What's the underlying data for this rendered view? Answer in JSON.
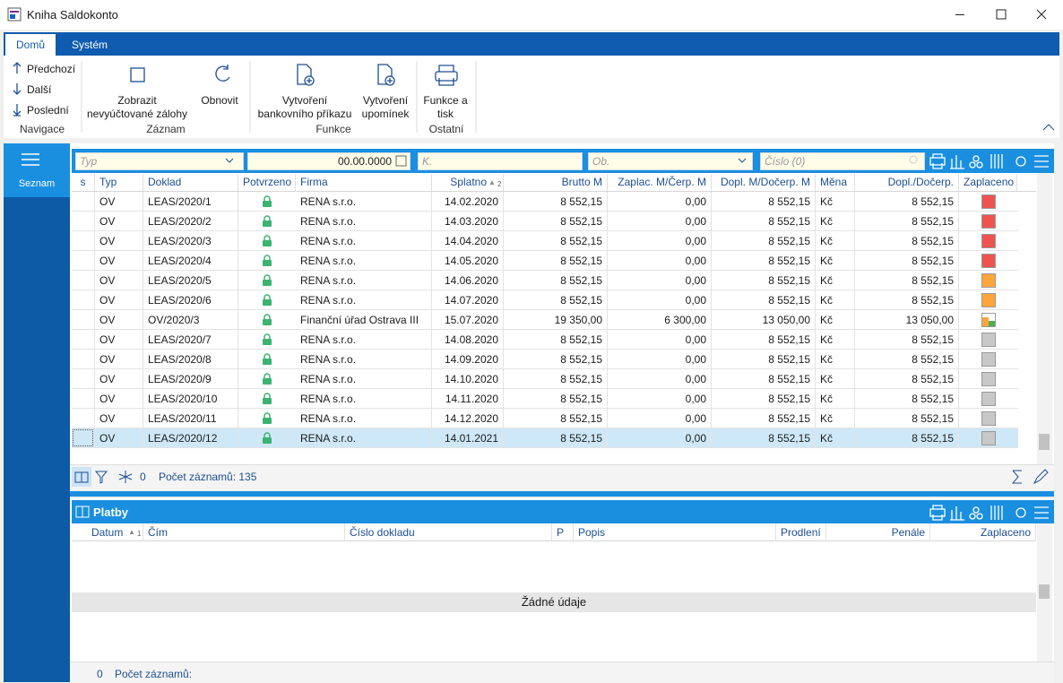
{
  "window": {
    "title": "Kniha Saldokonto"
  },
  "ribbon": {
    "tabs": [
      "Domů",
      "Systém"
    ],
    "groups": [
      {
        "label": "Navigace",
        "items": [
          {
            "lines": [
              "Předchozí"
            ]
          },
          {
            "lines": [
              "Další"
            ]
          },
          {
            "lines": [
              "Poslední"
            ]
          }
        ]
      },
      {
        "label": "Záznam",
        "items": [
          {
            "lines": [
              "Zobrazit",
              "nevyúčtované zálohy"
            ]
          },
          {
            "lines": [
              "Obnovit"
            ]
          }
        ]
      },
      {
        "label": "Funkce",
        "items": [
          {
            "lines": [
              "Vytvoření",
              "bankovního příkazu"
            ]
          },
          {
            "lines": [
              "Vytvoření",
              "upomínek"
            ]
          }
        ]
      },
      {
        "label": "Ostatní",
        "items": [
          {
            "lines": [
              "Funkce a",
              "tisk"
            ]
          }
        ]
      }
    ]
  },
  "sidebar": {
    "tab": "Seznam"
  },
  "filters": {
    "typ": "Typ",
    "date": "00.00.0000",
    "k": "K.",
    "ob": "Ob.",
    "cislo": "Číslo (0)"
  },
  "table": {
    "columns": [
      "s",
      "Typ",
      "Doklad",
      "Potvrzeno",
      "Firma",
      "Splatno",
      "Brutto M",
      "Zaplac. M/Čerp. M",
      "Dopl. M/Dočerp. M",
      "Měna",
      "Dopl./Dočerp.",
      "Zaplaceno"
    ],
    "sort_index": "2",
    "rows": [
      [
        "OV",
        "LEAS/2020/1",
        "RENA s.r.o.",
        "14.02.2020",
        "8 552,15",
        "0,00",
        "8 552,15",
        "Kč",
        "8 552,15"
      ],
      [
        "OV",
        "LEAS/2020/2",
        "RENA s.r.o.",
        "14.03.2020",
        "8 552,15",
        "0,00",
        "8 552,15",
        "Kč",
        "8 552,15"
      ],
      [
        "OV",
        "LEAS/2020/3",
        "RENA s.r.o.",
        "14.04.2020",
        "8 552,15",
        "0,00",
        "8 552,15",
        "Kč",
        "8 552,15"
      ],
      [
        "OV",
        "LEAS/2020/4",
        "RENA s.r.o.",
        "14.05.2020",
        "8 552,15",
        "0,00",
        "8 552,15",
        "Kč",
        "8 552,15"
      ],
      [
        "OV",
        "LEAS/2020/5",
        "RENA s.r.o.",
        "14.06.2020",
        "8 552,15",
        "0,00",
        "8 552,15",
        "Kč",
        "8 552,15"
      ],
      [
        "OV",
        "LEAS/2020/6",
        "RENA s.r.o.",
        "14.07.2020",
        "8 552,15",
        "0,00",
        "8 552,15",
        "Kč",
        "8 552,15"
      ],
      [
        "OV",
        "OV/2020/3",
        "Finanční úřad Ostrava III",
        "15.07.2020",
        "19 350,00",
        "6 300,00",
        "13 050,00",
        "Kč",
        "13 050,00"
      ],
      [
        "OV",
        "LEAS/2020/7",
        "RENA s.r.o.",
        "14.08.2020",
        "8 552,15",
        "0,00",
        "8 552,15",
        "Kč",
        "8 552,15"
      ],
      [
        "OV",
        "LEAS/2020/8",
        "RENA s.r.o.",
        "14.09.2020",
        "8 552,15",
        "0,00",
        "8 552,15",
        "Kč",
        "8 552,15"
      ],
      [
        "OV",
        "LEAS/2020/9",
        "RENA s.r.o.",
        "14.10.2020",
        "8 552,15",
        "0,00",
        "8 552,15",
        "Kč",
        "8 552,15"
      ],
      [
        "OV",
        "LEAS/2020/10",
        "RENA s.r.o.",
        "14.11.2020",
        "8 552,15",
        "0,00",
        "8 552,15",
        "Kč",
        "8 552,15"
      ],
      [
        "OV",
        "LEAS/2020/11",
        "RENA s.r.o.",
        "14.12.2020",
        "8 552,15",
        "0,00",
        "8 552,15",
        "Kč",
        "8 552,15"
      ],
      [
        "OV",
        "LEAS/2020/12",
        "RENA s.r.o.",
        "14.01.2021",
        "8 552,15",
        "0,00",
        "8 552,15",
        "Kč",
        "8 552,15"
      ]
    ],
    "paid_colors": [
      [
        "#ef5350"
      ],
      [
        "#ef5350"
      ],
      [
        "#ef5350"
      ],
      [
        "#ef5350"
      ],
      [
        "#ffa53a"
      ],
      [
        "#ffa53a"
      ],
      [
        "#ffa53a",
        "#4caf50"
      ],
      [
        "#c8c8c8"
      ],
      [
        "#c8c8c8"
      ],
      [
        "#c8c8c8"
      ],
      [
        "#c8c8c8"
      ],
      [
        "#c8c8c8"
      ],
      [
        "#c8c8c8"
      ]
    ],
    "selected_row": 12
  },
  "status": {
    "filter_count": "0",
    "records": "Počet záznamů: 135"
  },
  "platby": {
    "title": "Platby",
    "columns": [
      "Datum",
      "Čím",
      "Číslo dokladu",
      "P",
      "Popis",
      "Prodlení",
      "Penále",
      "Zaplaceno"
    ],
    "sort_index": "1",
    "empty": "Žádné údaje",
    "status_count": "0",
    "status_records": "Počet záznamů:"
  }
}
